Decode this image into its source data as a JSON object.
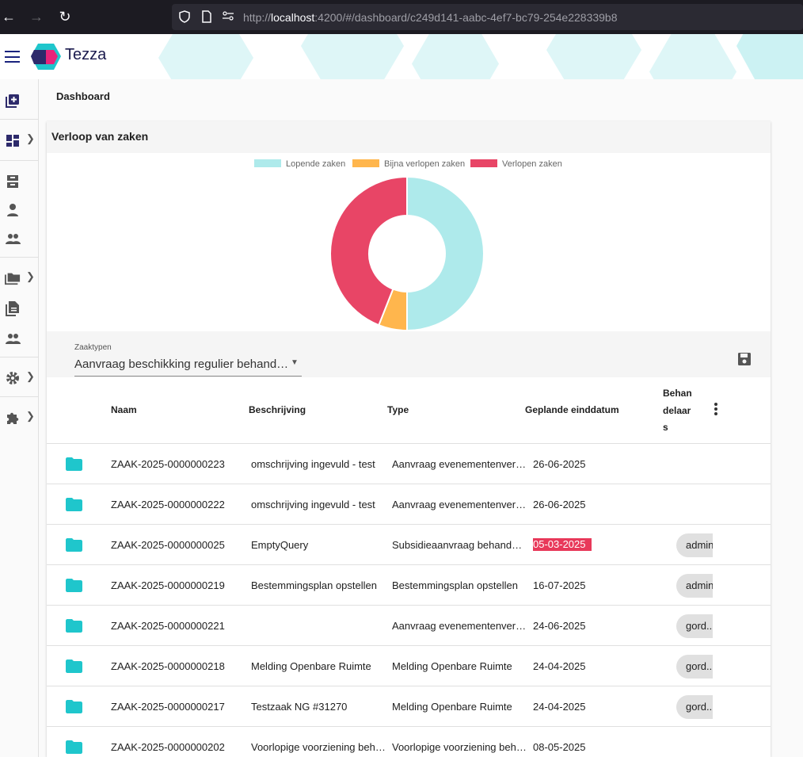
{
  "browser": {
    "url_prefix": "http://",
    "url_host": "localhost",
    "url_rest": ":4200/#/dashboard/c249d141-aabc-4ef7-bc79-254e228339b8"
  },
  "app": {
    "brand": "Tezza"
  },
  "breadcrumb": {
    "title": "Dashboard"
  },
  "card": {
    "title": "Verloop van zaken"
  },
  "chart_data": {
    "type": "pie",
    "title": "",
    "labels": [
      "Lopende zaken",
      "Bijna verlopen zaken",
      "Verlopen zaken"
    ],
    "values": [
      50,
      6,
      44
    ],
    "colors": [
      "#aeeaeb",
      "#ffb64d",
      "#e84566"
    ],
    "legend_position": "top",
    "donut": true
  },
  "filter": {
    "label": "Zaaktypen",
    "value": "Aanvraag beschikking regulier behand…"
  },
  "table": {
    "headers": {
      "naam": "Naam",
      "beschrijving": "Beschrijving",
      "type": "Type",
      "einddatum": "Geplande einddatum",
      "behandelaars": "Behandelaars"
    },
    "rows": [
      {
        "naam": "ZAAK-2025-0000000223",
        "beschrijving": "omschrijving ingevuld - test",
        "type": "Aanvraag evenementenvergunning",
        "datum": "26-06-2025",
        "behandelaar": "",
        "late": false
      },
      {
        "naam": "ZAAK-2025-0000000222",
        "beschrijving": "omschrijving ingevuld - test",
        "type": "Aanvraag evenementenvergunning",
        "datum": "26-06-2025",
        "behandelaar": "",
        "late": false
      },
      {
        "naam": "ZAAK-2025-0000000025",
        "beschrijving": "EmptyQuery",
        "type": "Subsidieaanvraag behandelen",
        "datum": "05-03-2025",
        "behandelaar": "admin",
        "late": true
      },
      {
        "naam": "ZAAK-2025-0000000219",
        "beschrijving": "Bestemmingsplan opstellen",
        "type": "Bestemmingsplan opstellen",
        "datum": "16-07-2025",
        "behandelaar": "admin",
        "late": false
      },
      {
        "naam": "ZAAK-2025-0000000221",
        "beschrijving": "",
        "type": "Aanvraag evenementenvergunning",
        "datum": "24-06-2025",
        "behandelaar": "gord..",
        "late": false
      },
      {
        "naam": "ZAAK-2025-0000000218",
        "beschrijving": "Melding Openbare Ruimte",
        "type": "Melding Openbare Ruimte",
        "datum": "24-04-2025",
        "behandelaar": "gord..",
        "late": false
      },
      {
        "naam": "ZAAK-2025-0000000217",
        "beschrijving": "Testzaak NG #31270",
        "type": "Melding Openbare Ruimte",
        "datum": "24-04-2025",
        "behandelaar": "gord..",
        "late": false
      },
      {
        "naam": "ZAAK-2025-0000000202",
        "beschrijving": "Voorlopige voorziening behandelen",
        "type": "Voorlopige voorziening behandelen",
        "datum": "08-05-2025",
        "behandelaar": "",
        "late": false
      }
    ]
  }
}
